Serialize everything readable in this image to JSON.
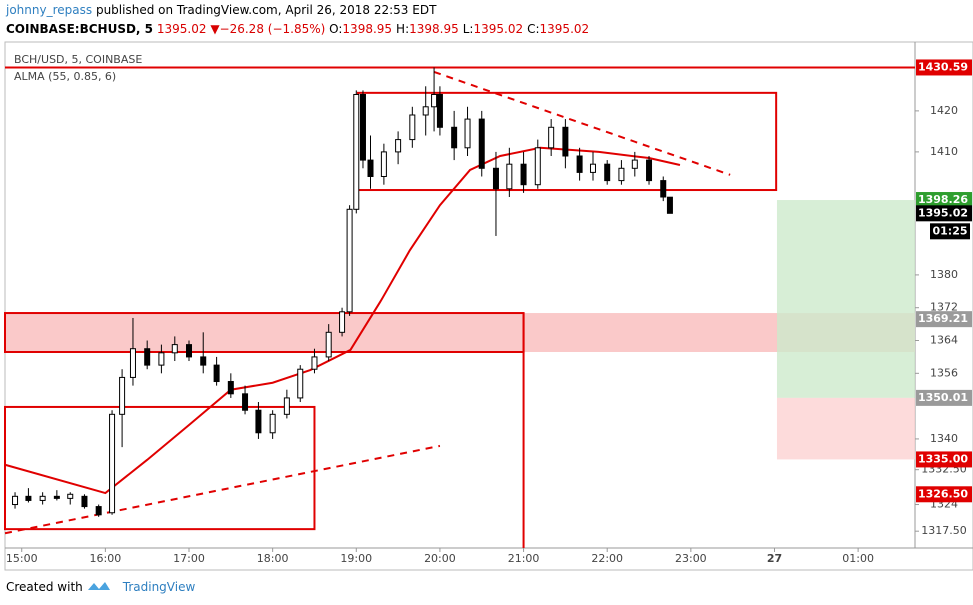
{
  "header": {
    "author": "johnny_repass",
    "published": "published on TradingView.com, April 26, 2018 22:53 EDT",
    "symbol": "COINBASE:BCHUSD, 5",
    "last": 1395.02,
    "arrow": "▼",
    "change": "−26.28 (−1.85%)",
    "ohlc": [
      {
        "label": "O:",
        "value": 1398.95
      },
      {
        "label": "H:",
        "value": 1398.95
      },
      {
        "label": "L:",
        "value": 1395.02
      },
      {
        "label": "C:",
        "value": 1395.02
      }
    ]
  },
  "footer": {
    "created": "Created with",
    "brand": "TradingView"
  },
  "chart_data": {
    "type": "candlestick",
    "legend": [
      "BCH/USD, 5, COINBASE",
      "ALMA (55, 0.85, 6)"
    ],
    "x": [
      14.92,
      15.08,
      15.25,
      15.42,
      15.58,
      15.75,
      15.92,
      16.08,
      16.2,
      16.33,
      16.5,
      16.67,
      16.83,
      17.0,
      17.17,
      17.33,
      17.5,
      17.67,
      17.83,
      18.0,
      18.17,
      18.33,
      18.5,
      18.67,
      18.83,
      18.92,
      19.0,
      19.08,
      19.17,
      19.33,
      19.5,
      19.67,
      19.83,
      19.93,
      20.0,
      20.17,
      20.33,
      20.5,
      20.67,
      20.83,
      21.0,
      21.17,
      21.33,
      21.5,
      21.67,
      21.83,
      22.0,
      22.17,
      22.33,
      22.5,
      22.67,
      22.75
    ],
    "open": [
      1324,
      1326,
      1325,
      1326,
      1325.5,
      1326,
      1323.5,
      1322,
      1346,
      1355,
      1362,
      1358,
      1361,
      1363,
      1360,
      1358,
      1354,
      1351,
      1347,
      1341.5,
      1346,
      1350,
      1357,
      1360,
      1366,
      1371,
      1396,
      1424,
      1408,
      1404,
      1410,
      1413,
      1419,
      1421,
      1424,
      1416,
      1411,
      1418,
      1406,
      1401,
      1407,
      1402,
      1411,
      1416,
      1409,
      1405,
      1407,
      1403,
      1406,
      1408,
      1403,
      1398.95
    ],
    "high": [
      1327,
      1328,
      1327,
      1327.5,
      1327,
      1326.5,
      1324,
      1347,
      1357,
      1369.5,
      1364,
      1363,
      1365,
      1364,
      1366,
      1360,
      1356,
      1353,
      1349,
      1347,
      1352,
      1358,
      1362,
      1368,
      1372,
      1397,
      1425,
      1425,
      1414,
      1412,
      1415,
      1421,
      1426,
      1430.59,
      1426,
      1420,
      1421,
      1420,
      1410,
      1411,
      1410,
      1413,
      1418,
      1418,
      1411,
      1410,
      1408,
      1408,
      1410,
      1409,
      1404,
      1398.95
    ],
    "low": [
      1323,
      1324.5,
      1324,
      1325,
      1324,
      1323,
      1321,
      1321.5,
      1338,
      1353,
      1357,
      1356,
      1359,
      1359,
      1356,
      1353,
      1350,
      1346,
      1340,
      1340,
      1345,
      1349,
      1356,
      1359,
      1365,
      1370,
      1395,
      1406,
      1401,
      1402,
      1407,
      1411,
      1414,
      1415,
      1414,
      1408,
      1409,
      1404,
      1389.5,
      1399,
      1400,
      1401,
      1409,
      1406,
      1403,
      1403,
      1402,
      1402,
      1404,
      1402,
      1398,
      1395.02
    ],
    "close": [
      1326,
      1325,
      1326,
      1325.5,
      1326.5,
      1323.5,
      1321.5,
      1346,
      1355,
      1362,
      1358,
      1361,
      1363,
      1360,
      1358,
      1354,
      1351,
      1347,
      1341.5,
      1346,
      1350,
      1357,
      1360,
      1366,
      1371,
      1396,
      1424,
      1408,
      1404,
      1410,
      1413,
      1419,
      1421,
      1424,
      1416,
      1411,
      1418,
      1406,
      1401,
      1407,
      1402,
      1411,
      1416,
      1409,
      1405,
      1407,
      1403,
      1406,
      1408,
      1403,
      1399,
      1395.02
    ],
    "up_color": "#ffffff",
    "down_color": "#000000",
    "overlay": {
      "name": "ALMA",
      "color": "#e00000",
      "x": [
        14.8,
        16.0,
        16.5,
        17.0,
        17.5,
        18.0,
        18.45,
        18.93,
        19.3,
        19.64,
        20.0,
        20.36,
        20.72,
        21.2,
        21.9,
        22.5,
        22.87
      ],
      "values": [
        1333.7,
        1326.8,
        1334.9,
        1343.4,
        1352,
        1353.7,
        1356.8,
        1361.7,
        1373.9,
        1386,
        1397,
        1405.6,
        1409,
        1411,
        1410,
        1408.5,
        1406.8
      ]
    },
    "drawings": [
      {
        "kind": "hline",
        "y": [
          1430.59
        ],
        "color": "#e00000"
      },
      {
        "kind": "rect",
        "x": [
          19.02,
          24.02
        ],
        "y": [
          1424.4,
          1400.7
        ],
        "color": "#e00000"
      },
      {
        "kind": "dashed",
        "x": [
          19.93,
          23.47
        ],
        "y": [
          1429.5,
          1404.4
        ],
        "color": "#e00000"
      },
      {
        "kind": "band",
        "y": [
          1370.7,
          1361.2
        ],
        "color": "#f9c0c0"
      },
      {
        "kind": "rect",
        "x": [
          14.8,
          21.0
        ],
        "y": [
          1370.7,
          1361.2
        ],
        "color": "#e00000"
      },
      {
        "kind": "vline",
        "x": [
          21.0
        ],
        "y": [
          1370.7,
          1313.4
        ],
        "color": "#e00000"
      },
      {
        "kind": "rect",
        "x": [
          14.8,
          18.5
        ],
        "y": [
          1347.8,
          1318
        ],
        "color": "#e00000"
      },
      {
        "kind": "dashed",
        "x": [
          14.8,
          20.0
        ],
        "y": [
          1317,
          1338.3
        ],
        "color": "#e00000"
      },
      {
        "kind": "fill",
        "x": [
          24.03,
          25.68
        ],
        "y": [
          1398.26,
          1350.01
        ],
        "color": "#cdeacc"
      },
      {
        "kind": "fill",
        "x": [
          24.03,
          25.68
        ],
        "y": [
          1350.01,
          1335.0
        ],
        "color": "#fcd2d2"
      }
    ],
    "xlim": [
      14.8,
      25.68
    ],
    "ylim": [
      1313.4,
      1436.8
    ],
    "xticks": [
      {
        "value": 15,
        "label": "15:00"
      },
      {
        "value": 16,
        "label": "16:00"
      },
      {
        "value": 17,
        "label": "17:00"
      },
      {
        "value": 18,
        "label": "18:00"
      },
      {
        "value": 19,
        "label": "19:00"
      },
      {
        "value": 20,
        "label": "20:00"
      },
      {
        "value": 21,
        "label": "21:00"
      },
      {
        "value": 22,
        "label": "22:00"
      },
      {
        "value": 23,
        "label": "23:00"
      },
      {
        "value": 24,
        "label": "27"
      },
      {
        "value": 25,
        "label": "01:00"
      }
    ],
    "yticks": [
      {
        "value": 1317.5,
        "label": "1317.50"
      },
      1324,
      {
        "value": 1332.5,
        "label": "1332.50"
      },
      1340,
      1356,
      1364,
      1372,
      1380,
      1410,
      1420
    ],
    "price_labels": [
      {
        "value": 1430.59,
        "label": "1430.59",
        "color": "#e00000"
      },
      {
        "value": 1398.26,
        "label": "1398.26",
        "color": "#2e9e2e"
      },
      {
        "value": 1395.02,
        "label": "1395.02",
        "color": "#000000"
      },
      {
        "value": 1369.21,
        "label": "1369.21",
        "color": "#9a9a9a"
      },
      {
        "value": 1350.01,
        "label": "1350.01",
        "color": "#9a9a9a"
      },
      {
        "value": 1335.0,
        "label": "1335.00",
        "color": "#e00000"
      },
      {
        "value": 1326.5,
        "label": "1326.50",
        "color": "#e00000"
      }
    ],
    "countdown": "01:25"
  }
}
